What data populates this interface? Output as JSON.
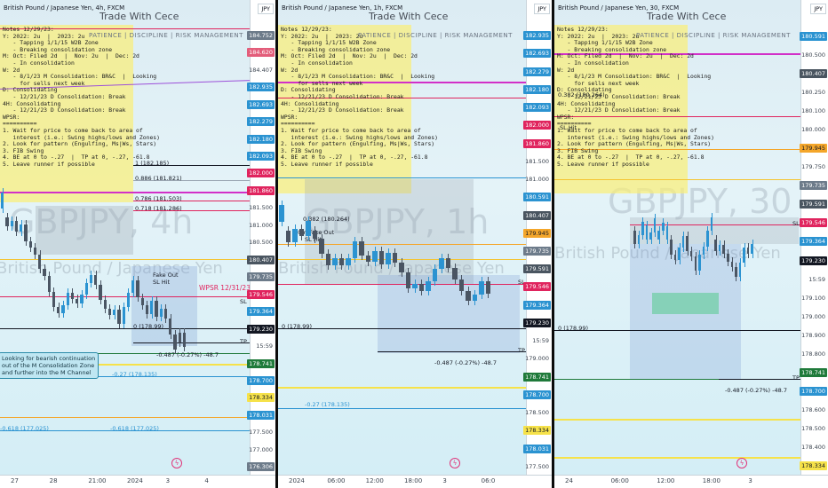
{
  "panes": [
    {
      "title": "British Pound / Japanese Yen, 4h, FXCM",
      "watermark": "Trade With Cece",
      "banner": "PATIENCE  |  DISCIPLINE  |  RISK MANAGEMENT",
      "big_symbol": "GBPJPY, 4h",
      "big_desc": "British Pound / Japanese Yen",
      "currency": "JPY",
      "price_ticks": [
        "184.752",
        "184.620",
        "184.407",
        "182.935",
        "182.693",
        "182.279",
        "182.180",
        "182.093",
        "182.000",
        "181.860",
        "181.500",
        "181.000",
        "180.500",
        "180.407",
        "179.735",
        "179.546",
        "179.364",
        "179.230",
        "15:59",
        "178.741",
        "178.700",
        "178.334",
        "178.031",
        "177.500",
        "177.000",
        "176.306"
      ],
      "price_labels": [
        {
          "text": "184.752",
          "bg": "#6d7b8a",
          "fg": "#ffffff"
        },
        {
          "text": "184.620",
          "bg": "#e35d7a",
          "fg": "#ffffff"
        },
        {
          "text": "182.935",
          "bg": "#2b93d1",
          "fg": "#ffffff"
        },
        {
          "text": "182.693",
          "bg": "#2b93d1",
          "fg": "#ffffff"
        },
        {
          "text": "182.279",
          "bg": "#2b93d1",
          "fg": "#ffffff"
        },
        {
          "text": "182.180",
          "bg": "#2b93d1",
          "fg": "#ffffff"
        },
        {
          "text": "182.093",
          "bg": "#2b93d1",
          "fg": "#ffffff"
        },
        {
          "text": "182.000",
          "bg": "#e0245e",
          "fg": "#ffffff"
        },
        {
          "text": "181.860",
          "bg": "#e0245e",
          "fg": "#ffffff"
        },
        {
          "text": "180.407",
          "bg": "#4a5560",
          "fg": "#ffffff"
        },
        {
          "text": "179.735",
          "bg": "#6d7b8a",
          "fg": "#ffffff"
        },
        {
          "text": "179.546",
          "bg": "#e0245e",
          "fg": "#ffffff"
        },
        {
          "text": "179.364",
          "bg": "#2b93d1",
          "fg": "#ffffff"
        },
        {
          "text": "179.230",
          "bg": "#131722",
          "fg": "#ffffff"
        },
        {
          "text": "178.741",
          "bg": "#1f7a3a",
          "fg": "#ffffff"
        },
        {
          "text": "178.700",
          "bg": "#2b93d1",
          "fg": "#ffffff"
        },
        {
          "text": "178.334",
          "bg": "#f6e24a",
          "fg": "#131722"
        },
        {
          "text": "178.031",
          "bg": "#2b93d1",
          "fg": "#ffffff"
        },
        {
          "text": "176.306",
          "bg": "#6d7b8a",
          "fg": "#ffffff"
        }
      ],
      "time_ticks": [
        "27",
        "28",
        "21:00",
        "2024",
        "3",
        "4"
      ],
      "notes": "Notes 12/29/23:\nY: 2022: 2u  |  2023: 2u\n   - Tapping 1/1/15 W2B Zone\n   - Breaking consolidation zone\nM: Oct: Filed 2d  |  Nov: 2u  |  Dec: 2d\n   - In consolidation\nW: 2d\n   - 8/1/23 M Consolidation: BR&C  |  Looking\n     for sells next week\nD: Consolidating\n   - 12/21/23 D Consolidation: Break\n4H: Consolidating\n   - 12/21/23 D Consolidation: Break\nWPSR:\n==========\n1. Wait for price to come back to area of\n   interest (i.e.: Swing highs/lows and Zones)\n2. Look for pattern (Engulfing, Ms|Ws, Stars)\n3. FIB Swing\n4. BE at 0 to -.27  |  TP at 0, -.27, -61.8\n5. Leave runner if possible",
      "fib_labels": [
        "1 (182.185)",
        "0.886 (181.821)",
        "0.786 (181.503)",
        "0.718 (181.286)",
        "0 (178.99)",
        "-0.487 (-0.27%) -48.7",
        "-0.27 (178.135)",
        "-0.618 (177.025)"
      ],
      "annotations": [
        "WPSR 12/31/23",
        "Fake Out",
        "SL Hit",
        "TP",
        "SL"
      ],
      "callout": "Looking for bearish continuation\nout of the M Consolidation Zone\nand further into the M Channel"
    },
    {
      "title": "British Pound / Japanese Yen, 1h, FXCM",
      "watermark": "Trade With Cece",
      "banner": "PATIENCE  |  DISCIPLINE  |  RISK MANAGEMENT",
      "big_symbol": "GBPJPY, 1h",
      "big_desc": "British Pound / Japanese Yen",
      "currency": "JPY",
      "price_ticks": [
        "182.935",
        "182.693",
        "182.279",
        "182.180",
        "182.093",
        "182.000",
        "181.860",
        "181.500",
        "181.000",
        "180.591",
        "180.407",
        "179.945",
        "179.735",
        "179.591",
        "179.546",
        "179.364",
        "179.230",
        "15:59",
        "179.000",
        "178.741",
        "178.700",
        "178.500",
        "178.334",
        "178.031",
        "177.500"
      ],
      "price_labels": [
        {
          "text": "182.935",
          "bg": "#2b93d1",
          "fg": "#ffffff"
        },
        {
          "text": "182.693",
          "bg": "#2b93d1",
          "fg": "#ffffff"
        },
        {
          "text": "182.279",
          "bg": "#2b93d1",
          "fg": "#ffffff"
        },
        {
          "text": "182.180",
          "bg": "#2b93d1",
          "fg": "#ffffff"
        },
        {
          "text": "182.093",
          "bg": "#2b93d1",
          "fg": "#ffffff"
        },
        {
          "text": "182.000",
          "bg": "#e0245e",
          "fg": "#ffffff"
        },
        {
          "text": "181.860",
          "bg": "#e0245e",
          "fg": "#ffffff"
        },
        {
          "text": "180.591",
          "bg": "#2b93d1",
          "fg": "#ffffff"
        },
        {
          "text": "180.407",
          "bg": "#4a5560",
          "fg": "#ffffff"
        },
        {
          "text": "179.945",
          "bg": "#f4a62a",
          "fg": "#131722"
        },
        {
          "text": "179.735",
          "bg": "#6d7b8a",
          "fg": "#ffffff"
        },
        {
          "text": "179.591",
          "bg": "#4a5560",
          "fg": "#ffffff"
        },
        {
          "text": "179.546",
          "bg": "#e0245e",
          "fg": "#ffffff"
        },
        {
          "text": "179.364",
          "bg": "#2b93d1",
          "fg": "#ffffff"
        },
        {
          "text": "179.230",
          "bg": "#131722",
          "fg": "#ffffff"
        },
        {
          "text": "178.741",
          "bg": "#1f7a3a",
          "fg": "#ffffff"
        },
        {
          "text": "178.700",
          "bg": "#2b93d1",
          "fg": "#ffffff"
        },
        {
          "text": "178.334",
          "bg": "#f6e24a",
          "fg": "#131722"
        },
        {
          "text": "178.031",
          "bg": "#2b93d1",
          "fg": "#ffffff"
        }
      ],
      "time_ticks": [
        "2024",
        "06:00",
        "12:00",
        "18:00",
        "3",
        "06:0"
      ],
      "notes": "Notes 12/29/23:\nY: 2022: 2u  |  2023: 2u\n   - Tapping 1/1/15 W2B Zone\n   - Breaking consolidation zone\nM: Oct: Filed 2d  |  Nov: 2u  |  Dec: 2d\n   - In consolidation\nW: 2d\n   - 8/1/23 M Consolidation: BR&C  |  Looking\n     for sells next week\nD: Consolidating\n   - 12/21/23 D Consolidation: Break\n4H: Consolidating\n   - 12/21/23 D Consolidation: Break\nWPSR:\n==========\n1. Wait for price to come back to area of\n   interest (i.e.: Swing highs/lows and Zones)\n2. Look for pattern (Engulfing, Ms|Ws, Stars)\n3. FIB Swing\n4. BE at 0 to -.27  |  TP at 0, -.27, -61.8\n5. Leave runner if possible",
      "fib_labels": [
        "0.382 (180.264)",
        "0 (178.99)",
        "-0.487 (-0.27%) -48.7",
        "-0.27 (178.135)"
      ],
      "annotations": [
        "30m Fake Out",
        "SL Hit",
        "TP",
        "SL"
      ]
    },
    {
      "title": "British Pound / Japanese Yen, 30, FXCM",
      "watermark": "Trade With Cece",
      "banner": "PATIENCE  |  DISCIPLINE  |  RISK MANAGEMENT",
      "big_symbol": "GBPJPY, 30",
      "big_desc": "British Pound / Japanese Yen",
      "currency": "JPY",
      "price_ticks": [
        "180.591",
        "180.500",
        "180.407",
        "180.250",
        "180.100",
        "180.000",
        "179.945",
        "179.750",
        "179.735",
        "179.591",
        "179.546",
        "179.364",
        "179.230",
        "15:59",
        "179.100",
        "179.000",
        "178.900",
        "178.800",
        "178.741",
        "178.700",
        "178.600",
        "178.500",
        "178.400",
        "178.334"
      ],
      "price_labels": [
        {
          "text": "180.591",
          "bg": "#2b93d1",
          "fg": "#ffffff"
        },
        {
          "text": "180.407",
          "bg": "#4a5560",
          "fg": "#ffffff"
        },
        {
          "text": "179.945",
          "bg": "#f4a62a",
          "fg": "#131722"
        },
        {
          "text": "179.735",
          "bg": "#6d7b8a",
          "fg": "#ffffff"
        },
        {
          "text": "179.591",
          "bg": "#4a5560",
          "fg": "#ffffff"
        },
        {
          "text": "179.546",
          "bg": "#e0245e",
          "fg": "#ffffff"
        },
        {
          "text": "179.364",
          "bg": "#2b93d1",
          "fg": "#ffffff"
        },
        {
          "text": "179.230",
          "bg": "#131722",
          "fg": "#ffffff"
        },
        {
          "text": "178.741",
          "bg": "#1f7a3a",
          "fg": "#ffffff"
        },
        {
          "text": "178.700",
          "bg": "#2b93d1",
          "fg": "#ffffff"
        },
        {
          "text": "178.334",
          "bg": "#f6e24a",
          "fg": "#131722"
        }
      ],
      "time_ticks": [
        "24",
        "06:00",
        "12:00",
        "18:00",
        "3"
      ],
      "notes": "Notes 12/29/23:\nY: 2022: 2u  |  2023: 2u\n   - Tapping 1/1/15 W2B Zone\n   - Breaking consolidation zone\nM: Oct: Filed 2d  |  Nov: 2u  |  Dec: 2d\n   - In consolidation\nW: 2d\n   - 8/1/23 M Consolidation: BR&C  |  Looking\n     for sells next week\nD: Consolidating\n   - 12/21/23 D Consolidation: Break\n4H: Consolidating\n   - 12/21/23 D Consolidation: Break\nWPSR:\n==========\n1. Wait for price to come back to area of\n   interest (i.e.: Swing highs/lows and Zones)\n2. Look for pattern (Engulfing, Ms|Ws, Stars)\n3. FIB Swing\n4. BE at 0 to -.27  |  TP at 0, -.27, -61.8\n5. Leave runner if possible",
      "fib_labels": [
        "0.382 (180.264)",
        "0 (178.99)",
        "-0.487 (-0.27%) -48.7"
      ],
      "annotations": [
        "SL Hit",
        "TP",
        "SL"
      ]
    }
  ],
  "colors": {
    "bull": "#2b93d1",
    "bear": "#4a5563",
    "accent": "#e0245e",
    "note": "#f7e97a"
  }
}
